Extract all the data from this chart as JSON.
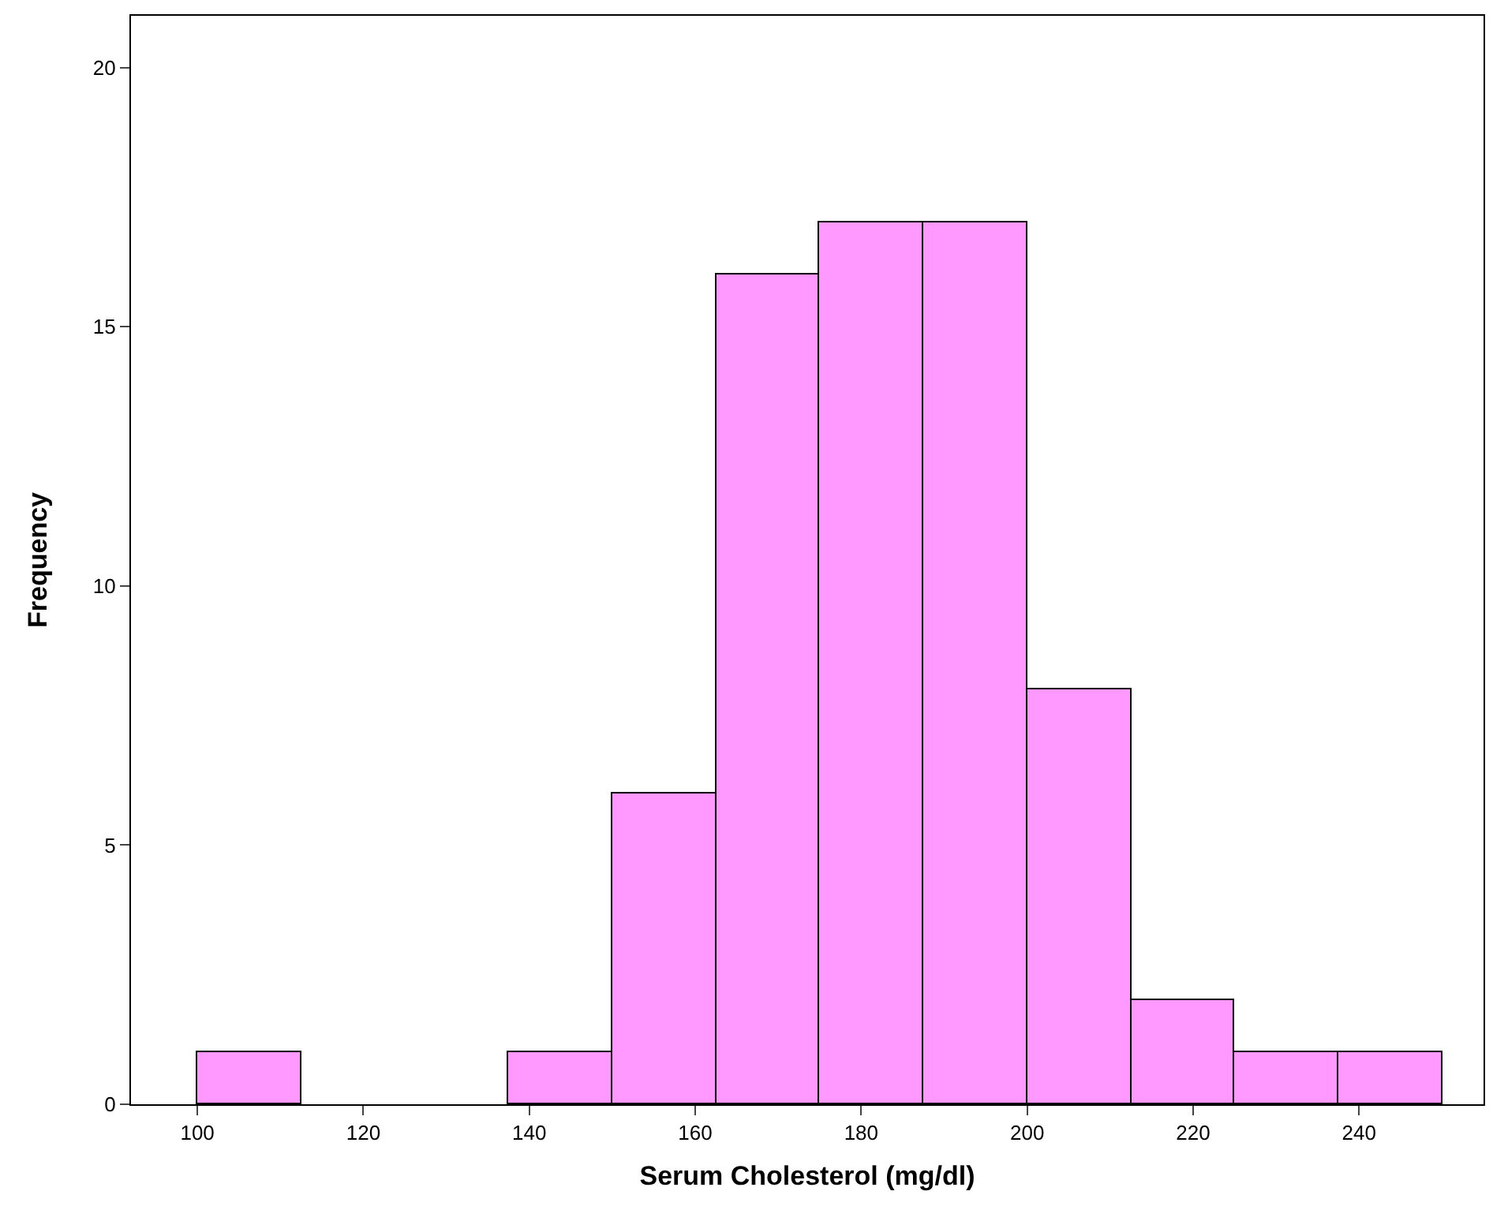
{
  "chart_data": {
    "type": "histogram",
    "xlabel": "Serum Cholesterol (mg/dl)",
    "ylabel": "Frequency",
    "bins": [
      100,
      112.5,
      125,
      137.5,
      150,
      162.5,
      175,
      187.5,
      200,
      212.5,
      225,
      237.5,
      250
    ],
    "values": [
      1,
      0,
      0,
      1,
      6,
      16,
      17,
      17,
      8,
      2,
      1,
      1
    ],
    "color": "#ff99ff",
    "xlim": [
      92,
      255
    ],
    "xticks": [
      100,
      120,
      140,
      160,
      180,
      200,
      220,
      240
    ],
    "ylim": [
      0,
      21
    ],
    "yticks": [
      0,
      5,
      10,
      15,
      20
    ]
  }
}
